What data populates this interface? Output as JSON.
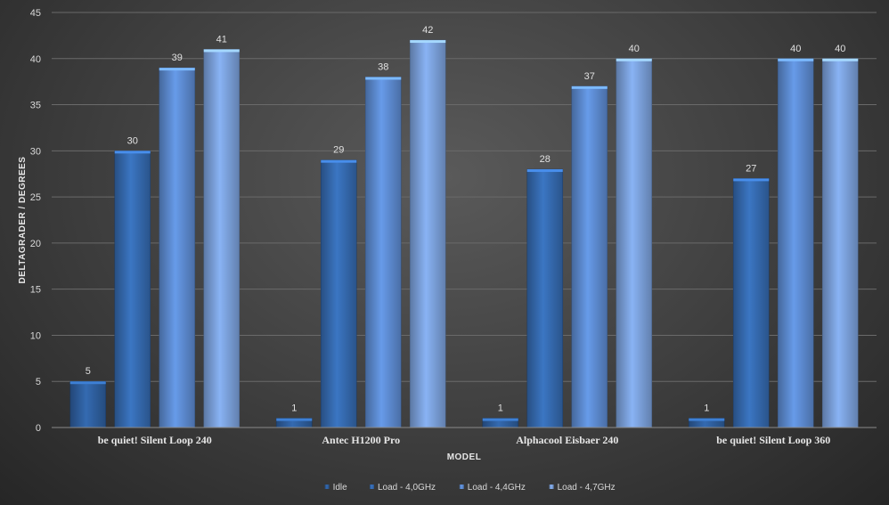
{
  "chart_data": {
    "type": "bar",
    "title": "",
    "xlabel": "MODEL",
    "ylabel": "DELTAGRADER / DEGREES",
    "ylim": [
      0,
      45
    ],
    "ytick_step": 5,
    "grid": true,
    "legend_position": "bottom",
    "categories": [
      "be quiet! Silent Loop 240",
      "Antec H1200 Pro",
      "Alphacool Eisbaer 240",
      "be quiet! Silent Loop 360"
    ],
    "series": [
      {
        "name": "Idle",
        "values": [
          5,
          1,
          1,
          1
        ],
        "color": "#2e5f9e"
      },
      {
        "name": "Load - 4,0GHz",
        "values": [
          30,
          29,
          28,
          27
        ],
        "color": "#3569ae"
      },
      {
        "name": "Load - 4,4GHz",
        "values": [
          39,
          38,
          37,
          40
        ],
        "color": "#5c8ad0"
      },
      {
        "name": "Load - 4,7GHz",
        "values": [
          41,
          42,
          40,
          40
        ],
        "color": "#7aa0da"
      }
    ]
  }
}
